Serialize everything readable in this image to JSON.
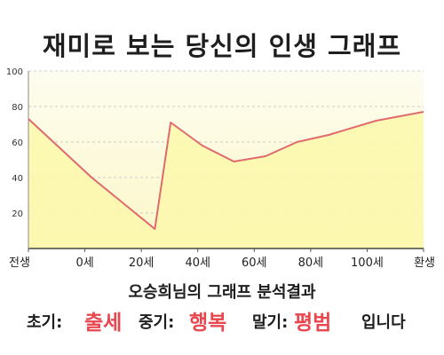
{
  "title": "재미로 보는 당신의 인생 그래프",
  "summary": {
    "line": "오승희님의 그래프 분석결과",
    "early_label": "초기:",
    "early_value": "출세",
    "middle_label": "중기:",
    "middle_value": "행복",
    "late_label": "말기:",
    "late_value": "평범",
    "ending": "입니다"
  },
  "colors": {
    "plot_bg_top": "#fdfdf0",
    "plot_bg_bottom": "#fcf7c8",
    "fill": "#fcf8ac",
    "line": "#e06a6e",
    "grid": "#cccccc",
    "accent": "#e8474f"
  },
  "chart_data": {
    "type": "area",
    "title": "재미로 보는 당신의 인생 그래프",
    "xlabel": "",
    "ylabel": "",
    "ylim": [
      0,
      100
    ],
    "yticks": [
      20,
      40,
      60,
      80,
      100
    ],
    "xticks": [
      "전생",
      "0세",
      "20세",
      "40세",
      "60세",
      "80세",
      "100세",
      "환생"
    ],
    "grid": true,
    "legend": "none",
    "series": [
      {
        "x": [
          -20,
          0,
          20,
          25,
          35,
          45,
          55,
          65,
          75,
          90,
          105
        ],
        "values": [
          73,
          40,
          11,
          71,
          58,
          49,
          52,
          60,
          64,
          72,
          77
        ]
      }
    ]
  }
}
